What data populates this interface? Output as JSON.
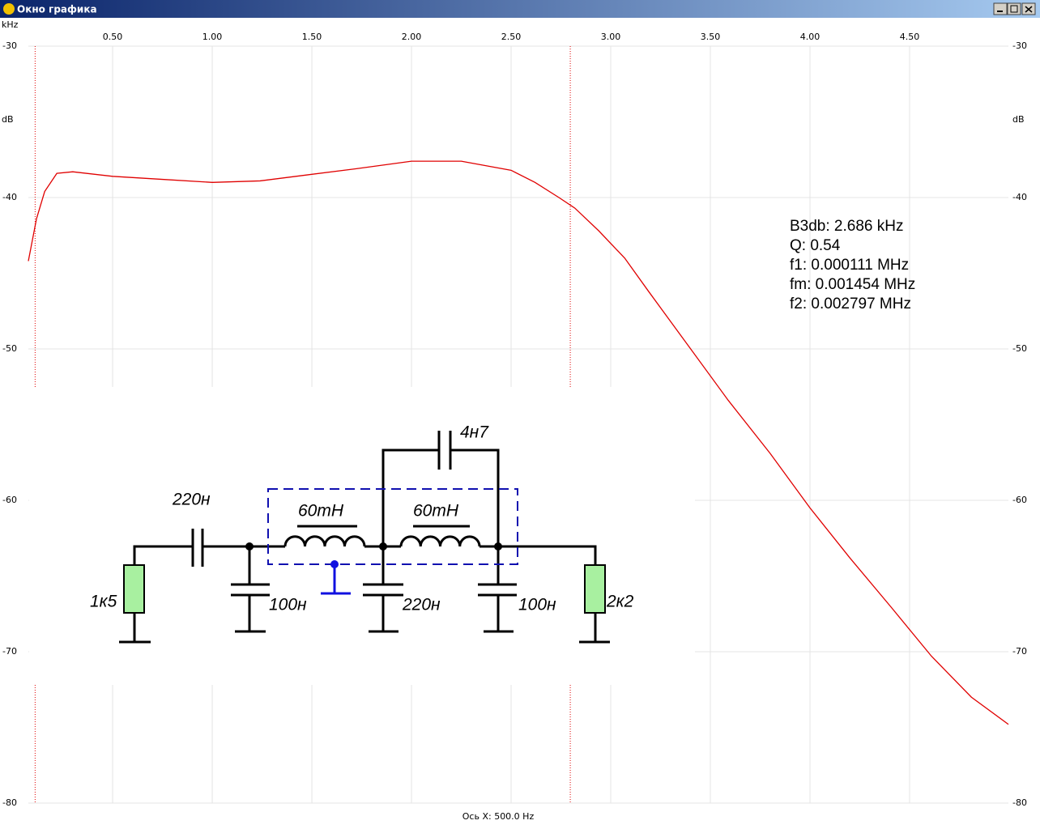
{
  "window": {
    "title": "Окно графика"
  },
  "chart_data": {
    "type": "line",
    "x_unit": "kHz",
    "y_unit": "dB",
    "x_axis_note": "Ось X: 500.0 Hz",
    "xlim": [
      0.077,
      4.996
    ],
    "ylim": [
      -80,
      -30
    ],
    "xticks": [
      {
        "value": 0.5,
        "label": "0.50"
      },
      {
        "value": 1,
        "label": "1.00"
      },
      {
        "value": 1.5,
        "label": "1.50"
      },
      {
        "value": 2,
        "label": "2.00"
      },
      {
        "value": 2.5,
        "label": "2.50"
      },
      {
        "value": 3,
        "label": "3.00"
      },
      {
        "value": 3.5,
        "label": "3.50"
      },
      {
        "value": 4,
        "label": "4.00"
      },
      {
        "value": 4.5,
        "label": "4.50"
      }
    ],
    "yticks": [
      -30,
      -40,
      -50,
      -60,
      -70,
      -80
    ],
    "grid": true,
    "x": [
      0.077,
      0.118,
      0.159,
      0.22,
      0.3,
      0.5,
      0.75,
      1.0,
      1.24,
      1.48,
      1.72,
      2.0,
      2.25,
      2.5,
      2.62,
      2.74,
      2.82,
      2.94,
      3.07,
      3.19,
      3.39,
      3.59,
      3.8,
      4.0,
      4.2,
      4.41,
      4.61,
      4.81,
      4.996
    ],
    "series": [
      {
        "color": "#e00000",
        "values": [
          -44.2,
          -41.4,
          -39.6,
          -38.4,
          -38.3,
          -38.6,
          -38.8,
          -39.0,
          -38.9,
          -38.5,
          -38.1,
          -37.6,
          -37.6,
          -38.2,
          -39.0,
          -40.0,
          -40.7,
          -42.2,
          -44.0,
          -46.2,
          -49.8,
          -53.4,
          -56.9,
          -60.5,
          -63.8,
          -67.1,
          -70.3,
          -73.0,
          -74.8
        ]
      }
    ],
    "markers": {
      "color": "#e00000",
      "values": [
        0.111,
        2.797
      ]
    },
    "annotations": [
      "B3db: 2.686 kHz",
      "Q: 0.54",
      "f1: 0.000111 MHz",
      "fm: 0.001454 MHz",
      "f2: 0.002797 MHz"
    ]
  },
  "schematic": {
    "labels": [
      "220н",
      "60mH",
      "60mH",
      "4н7",
      "1к5",
      "100н",
      "220н",
      "100н",
      "2к2"
    ]
  }
}
